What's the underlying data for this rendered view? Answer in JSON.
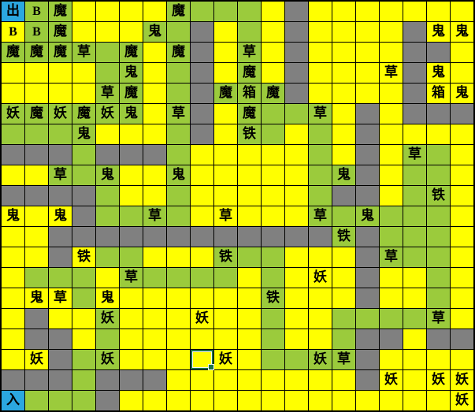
{
  "palette": {
    "yellow": "#FFFF00",
    "green": "#9BCB3C",
    "gray": "#808080",
    "blue": "#2BA7E0",
    "grid_line": "#000000",
    "glyph_color": "#000000",
    "selection_border": "#1E7145",
    "selection_inner": "#F2F7F2"
  },
  "glyph_legend": {
    "出": "exit",
    "入": "entrance",
    "魔": "demon",
    "鬼": "ghost",
    "草": "grass",
    "妖": "monster",
    "铁": "iron",
    "箱": "box",
    "B": "B"
  },
  "grid": {
    "cols": 20,
    "rows": 20,
    "cell_tokens_note": "first char = background (y yellow, g green, x gray, b blue); remainder = glyph",
    "cells": [
      "b出 gB g魔 y y y y g魔 g g g y x y y y y y y y",
      "yB gB g魔 y y y g鬼 g x y g y x y y y y x y鬼 y鬼",
      "g魔 g魔 g魔 g草 g g魔 y g魔 x y g草 y x y y y y x x y",
      "y y y y g g鬼 y g x y g魔 y x y y y y草 x y鬼 y",
      "y y y y g草 g魔 y g x g魔 g箱 g魔 x y y y y x y箱 y鬼",
      "g妖 g魔 g妖 g魔 g妖 g鬼 y g草 x y g魔 g g g草 y x y x x x",
      "g g g g鬼 y y y g x y g铁 g y g y x y y y y",
      "x x x g x x x g y y y y y g y x y g草 g y",
      "y y g草 g g鬼 y y g鬼 y y y y y g g鬼 x y g g y",
      "x x x x g y y g y y y y y g x x y g g铁 y",
      "y鬼 y y鬼 x g g g草 g y y草 y y y g草 g g鬼 g g g y",
      "y y x x x x x x x x x x x x g铁 x g g g y",
      "y y x y铁 g g y y y g铁 g g y y y x g草 g g y",
      "y g g g y g草 g g g g y g y y妖 y x y y g y",
      "y y鬼 y草 g y鬼 y y y y y y g铁 y y y x y y g y",
      "y x y y g妖 y y y y妖 y y g y y g g g g g草 y",
      "y x x y g y y y y y y g y y g x x y x x",
      "y y妖 x g g妖 y y y y y妖 y g g g妖 g草 x y y y y",
      "x x x g x x x y y y y y y y y x y妖 y y妖 y妖",
      "b入 g g g x y y y y y y y y y y y y y y y妖"
    ]
  },
  "selected": {
    "row": 17,
    "col": 8
  }
}
